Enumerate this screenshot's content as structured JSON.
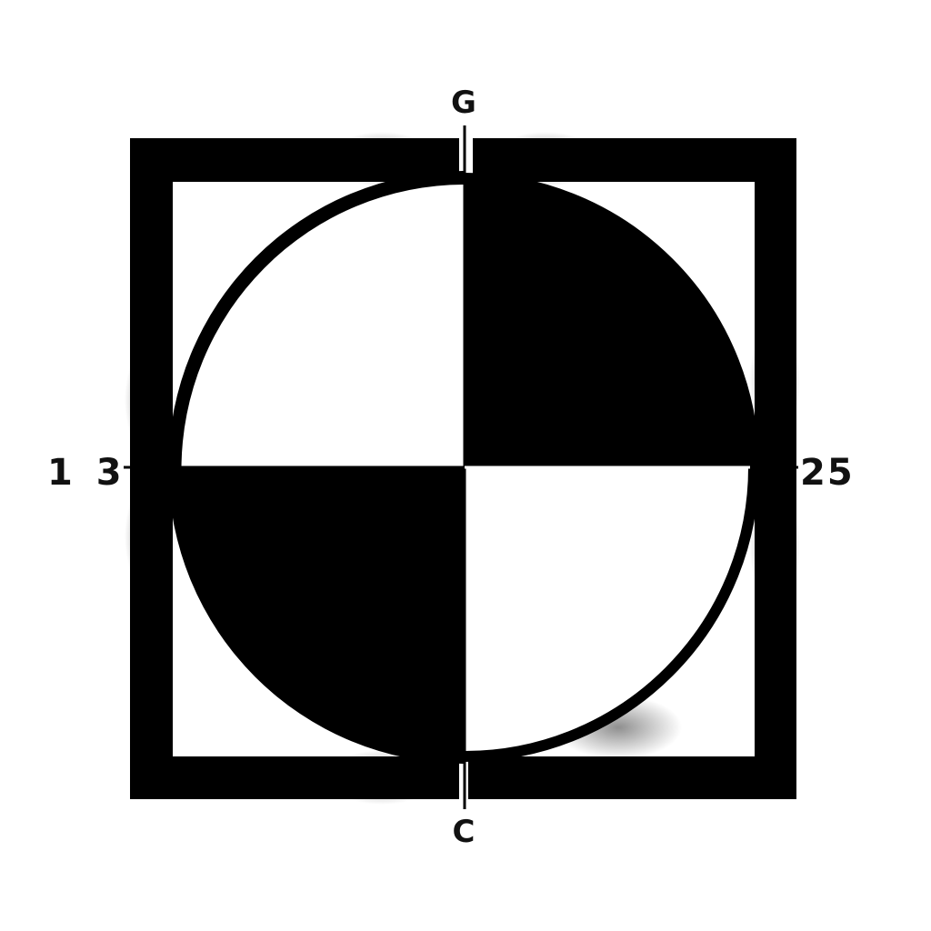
{
  "labels": {
    "top": "G",
    "bottom": "C",
    "left": "1 3",
    "right": "25"
  },
  "colors": {
    "ink": "#000000",
    "paper": "#ffffff"
  },
  "shapes": {
    "frame": "square-frame",
    "disc": "quartered-circle"
  }
}
